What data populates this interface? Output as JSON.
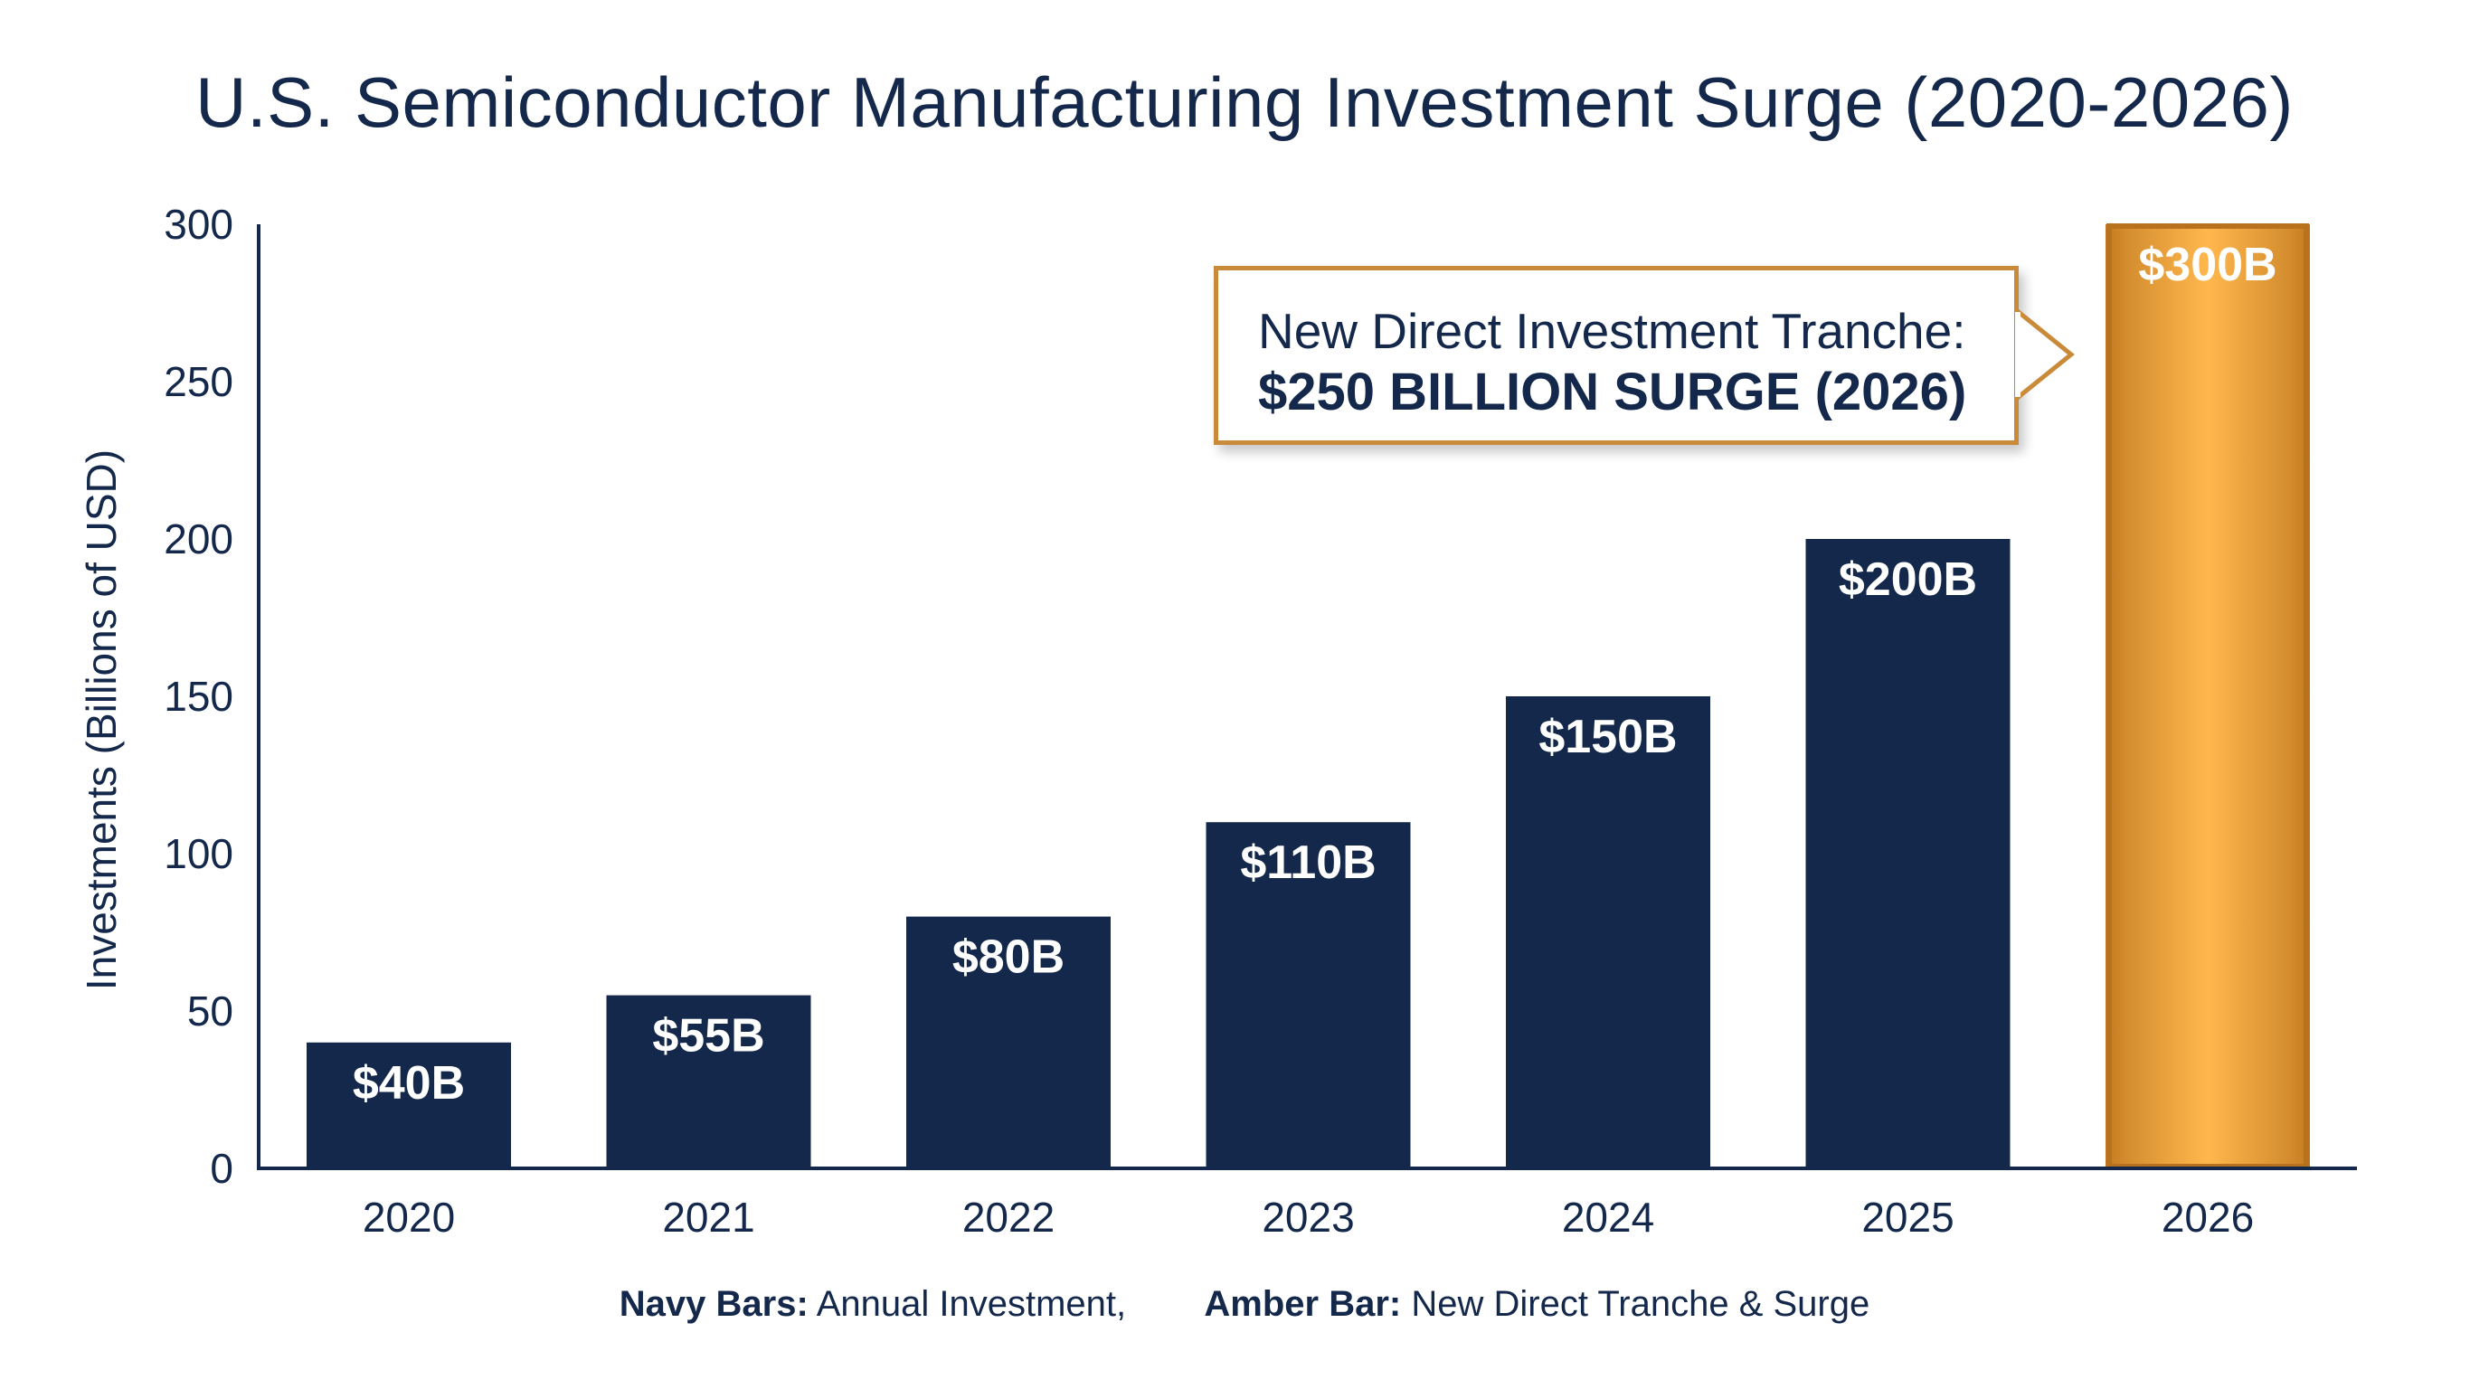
{
  "chart_data": {
    "type": "bar",
    "title": "U.S. Semiconductor Manufacturing Investment Surge (2020-2026)",
    "ylabel": "Investments (Billions of USD)",
    "xlabel": "",
    "ylim": [
      0,
      300
    ],
    "yticks": [
      0,
      50,
      100,
      150,
      200,
      250,
      300
    ],
    "categories": [
      "2020",
      "2021",
      "2022",
      "2023",
      "2024",
      "2025",
      "2026"
    ],
    "values": [
      40,
      55,
      80,
      110,
      150,
      200,
      300
    ],
    "data_labels": [
      "$40B",
      "$55B",
      "$80B",
      "$110B",
      "$150B",
      "$200B",
      "$300B"
    ],
    "bar_colors": [
      "#14284b",
      "#14284b",
      "#14284b",
      "#14284b",
      "#14284b",
      "#14284b",
      "#e9a23b"
    ],
    "grid": false,
    "annotation": {
      "line1": "New Direct Investment Tranche:",
      "line2": "$250 BILLION SURGE (2026)",
      "points_to": "2026"
    },
    "legend": {
      "placement": "bottom",
      "items": [
        {
          "key": "Navy Bars:",
          "text": "Annual Investment,",
          "color": "#14284b"
        },
        {
          "key": "Amber Bar:",
          "text": "New Direct Tranche & Surge",
          "color": "#e9a23b"
        }
      ]
    }
  },
  "colors": {
    "navy": "#14284b",
    "amber": "#e9a23b",
    "amber_border": "#c98a3a",
    "background": "#ffffff"
  }
}
